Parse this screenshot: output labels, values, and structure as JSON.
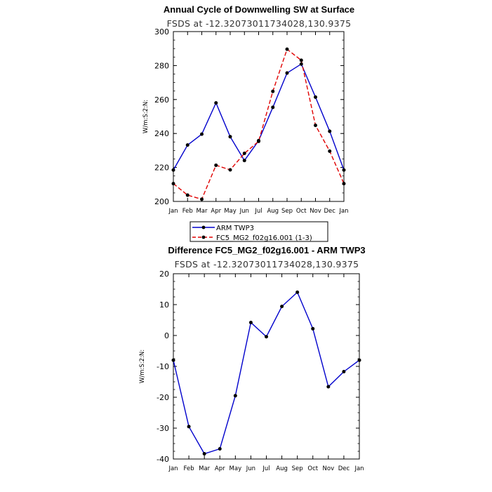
{
  "chart_data": [
    {
      "type": "line",
      "title": "Annual Cycle of Downwelling SW at Surface",
      "subtitle": "FSDS at -12.32073011734028,130.9375",
      "xlabel": "",
      "ylabel": "W/m:S:2:N:",
      "ylim": [
        200,
        300
      ],
      "yticks": [
        200,
        220,
        240,
        260,
        280,
        300
      ],
      "categories": [
        "Jan",
        "Feb",
        "Mar",
        "Apr",
        "May",
        "Jun",
        "Jul",
        "Aug",
        "Sep",
        "Oct",
        "Nov",
        "Dec",
        "Jan"
      ],
      "series": [
        {
          "name": "ARM TWP3",
          "color": "#0000cc",
          "dash": "solid",
          "values": [
            218.5,
            233.2,
            239.6,
            258.0,
            238.1,
            224.1,
            235.8,
            255.4,
            275.6,
            280.9,
            261.4,
            241.3,
            218.5
          ]
        },
        {
          "name": "FC5_MG2_f02g16.001 (1-3)",
          "color": "#e00000",
          "dash": "dashed",
          "values": [
            210.5,
            203.7,
            201.3,
            221.3,
            218.6,
            228.3,
            235.4,
            264.8,
            289.6,
            283.1,
            244.8,
            229.6,
            210.5
          ]
        }
      ],
      "legend": "bottom-left"
    },
    {
      "type": "line",
      "title": "Difference FC5_MG2_f02g16.001 - ARM TWP3",
      "subtitle": "FSDS at -12.32073011734028,130.9375",
      "xlabel": "",
      "ylabel": "W/m:S:2:N:",
      "ylim": [
        -40,
        20
      ],
      "yticks": [
        -40,
        -30,
        -20,
        -10,
        0,
        10,
        20
      ],
      "categories": [
        "Jan",
        "Feb",
        "Mar",
        "Apr",
        "May",
        "Jun",
        "Jul",
        "Aug",
        "Sep",
        "Oct",
        "Nov",
        "Dec",
        "Jan"
      ],
      "series": [
        {
          "color": "#0000cc",
          "dash": "solid",
          "values": [
            -8.0,
            -29.5,
            -38.3,
            -36.7,
            -19.5,
            4.2,
            -0.4,
            9.4,
            14.0,
            2.2,
            -16.6,
            -11.7,
            -8.0
          ]
        }
      ]
    }
  ]
}
